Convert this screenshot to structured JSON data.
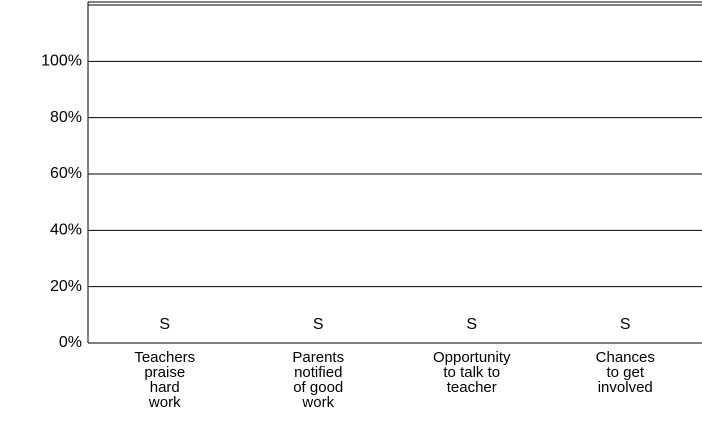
{
  "chart_data": {
    "type": "bar",
    "categories": [
      "Teachers\npraise\nhard\nwork",
      "Parents\nnotified\nof good\nwork",
      "Opportunity\nto talk to\nteacher",
      "Chances\nto get\ninvolved"
    ],
    "values": [
      null,
      null,
      null,
      null
    ],
    "value_labels": [
      "S",
      "S",
      "S",
      "S"
    ],
    "color": "#ffffff",
    "ylim": [
      0,
      120
    ],
    "yticks": [
      {
        "value": 0,
        "label": "0%"
      },
      {
        "value": 20,
        "label": "20%"
      },
      {
        "value": 40,
        "label": "40%"
      },
      {
        "value": 60,
        "label": "60%"
      },
      {
        "value": 80,
        "label": "80%"
      },
      {
        "value": 100,
        "label": "100%"
      }
    ],
    "grid": true
  }
}
